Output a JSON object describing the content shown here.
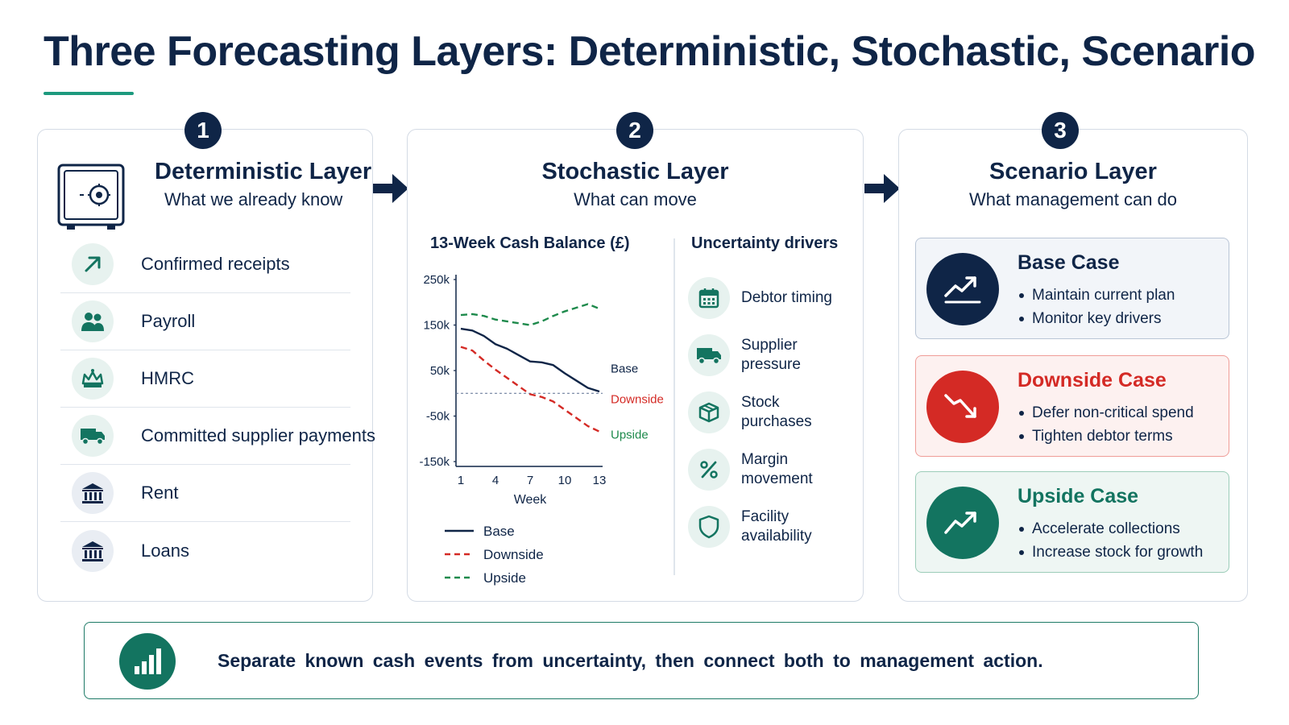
{
  "title": "Three Forecasting Layers: Deterministic, Stochastic, Scenario",
  "colors": {
    "navy": "#0f2547",
    "teal": "#137460",
    "red": "#d42a25",
    "green_dashed": "#1e8a4c",
    "accent": "#1d9a7e"
  },
  "layers": [
    {
      "step": "1",
      "title": "Deterministic Layer",
      "subtitle": "What we already know",
      "icon": "safe-icon"
    },
    {
      "step": "2",
      "title": "Stochastic Layer",
      "subtitle": "What can move"
    },
    {
      "step": "3",
      "title": "Scenario Layer",
      "subtitle": "What management can do"
    }
  ],
  "known_items": [
    {
      "label": "Confirmed receipts",
      "icon": "arrow-up-right-icon"
    },
    {
      "label": "Payroll",
      "icon": "people-icon"
    },
    {
      "label": "HMRC",
      "icon": "crown-icon"
    },
    {
      "label": "Committed supplier payments",
      "icon": "truck-icon"
    },
    {
      "label": "Rent",
      "icon": "bank-icon"
    },
    {
      "label": "Loans",
      "icon": "bank-icon"
    }
  ],
  "chart_data": {
    "type": "line",
    "title": "13-Week Cash Balance (£)",
    "xlabel": "Week",
    "ylabel": "",
    "x": [
      1,
      2,
      3,
      4,
      5,
      6,
      7,
      8,
      9,
      10,
      11,
      12,
      13
    ],
    "xticks": [
      "1",
      "4",
      "7",
      "10",
      "13"
    ],
    "xtick_values": [
      1,
      4,
      7,
      10,
      13
    ],
    "yticks": [
      "250k",
      "150k",
      "50k",
      "-50k",
      "-150k"
    ],
    "ytick_values": [
      250,
      150,
      50,
      -50,
      -150
    ],
    "ylim": [
      -150,
      250
    ],
    "reference_line": 0,
    "series": [
      {
        "name": "Base",
        "style": "solid",
        "color": "#0f2547",
        "values": [
          142,
          138,
          126,
          108,
          98,
          84,
          70,
          68,
          62,
          44,
          28,
          12,
          4
        ]
      },
      {
        "name": "Downside",
        "style": "dashed",
        "color": "#d42a25",
        "values": [
          102,
          94,
          72,
          52,
          34,
          16,
          -2,
          -8,
          -18,
          -36,
          -54,
          -72,
          -84
        ]
      },
      {
        "name": "Upside",
        "style": "dashed",
        "color": "#1e8a4c",
        "values": [
          172,
          174,
          170,
          162,
          158,
          154,
          150,
          158,
          170,
          180,
          188,
          196,
          186
        ]
      }
    ],
    "legend": "bottom",
    "end_labels": [
      "Base",
      "Downside",
      "Upside"
    ]
  },
  "drivers_title": "Uncertainty drivers",
  "drivers": [
    {
      "label": "Debtor timing",
      "icon": "calendar-icon"
    },
    {
      "label": "Supplier pressure",
      "icon": "truck-icon"
    },
    {
      "label": "Stock purchases",
      "icon": "box-icon"
    },
    {
      "label": "Margin movement",
      "icon": "percent-icon"
    },
    {
      "label": "Facility availability",
      "icon": "shield-icon"
    }
  ],
  "cases": [
    {
      "title": "Base Case",
      "bullets": [
        "Maintain current plan",
        "Monitor key drivers"
      ],
      "icon": "trend-up-icon"
    },
    {
      "title": "Downside Case",
      "bullets": [
        "Defer non-critical spend",
        "Tighten debtor terms"
      ],
      "icon": "trend-down-icon"
    },
    {
      "title": "Upside Case",
      "bullets": [
        "Accelerate collections",
        "Increase stock for growth"
      ],
      "icon": "trend-up-icon"
    }
  ],
  "footer": {
    "text": "Separate known cash events from uncertainty, then connect both to management action.",
    "icon": "bar-chart-icon"
  }
}
